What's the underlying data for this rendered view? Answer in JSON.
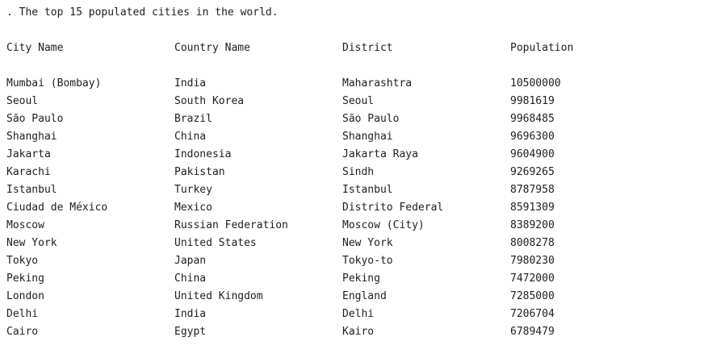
{
  "output": {
    "title": ". The top 15 populated cities in the world.",
    "headers": [
      "City Name",
      "Country Name",
      "District",
      "Population"
    ],
    "rows": [
      [
        "Mumbai (Bombay)",
        "India",
        "Maharashtra",
        "10500000"
      ],
      [
        "Seoul",
        "South Korea",
        "Seoul",
        "9981619"
      ],
      [
        "São Paulo",
        "Brazil",
        "São Paulo",
        "9968485"
      ],
      [
        "Shanghai",
        "China",
        "Shanghai",
        "9696300"
      ],
      [
        "Jakarta",
        "Indonesia",
        "Jakarta Raya",
        "9604900"
      ],
      [
        "Karachi",
        "Pakistan",
        "Sindh",
        "9269265"
      ],
      [
        "Istanbul",
        "Turkey",
        "Istanbul",
        "8787958"
      ],
      [
        "Ciudad de México",
        "Mexico",
        "Distrito Federal",
        "8591309"
      ],
      [
        "Moscow",
        "Russian Federation",
        "Moscow (City)",
        "8389200"
      ],
      [
        "New York",
        "United States",
        "New York",
        "8008278"
      ],
      [
        "Tokyo",
        "Japan",
        "Tokyo-to",
        "7980230"
      ],
      [
        "Peking",
        "China",
        "Peking",
        "7472000"
      ],
      [
        "London",
        "United Kingdom",
        "England",
        "7285000"
      ],
      [
        "Delhi",
        "India",
        "Delhi",
        "7206704"
      ],
      [
        "Cairo",
        "Egypt",
        "Kairo",
        "6789479"
      ]
    ]
  }
}
